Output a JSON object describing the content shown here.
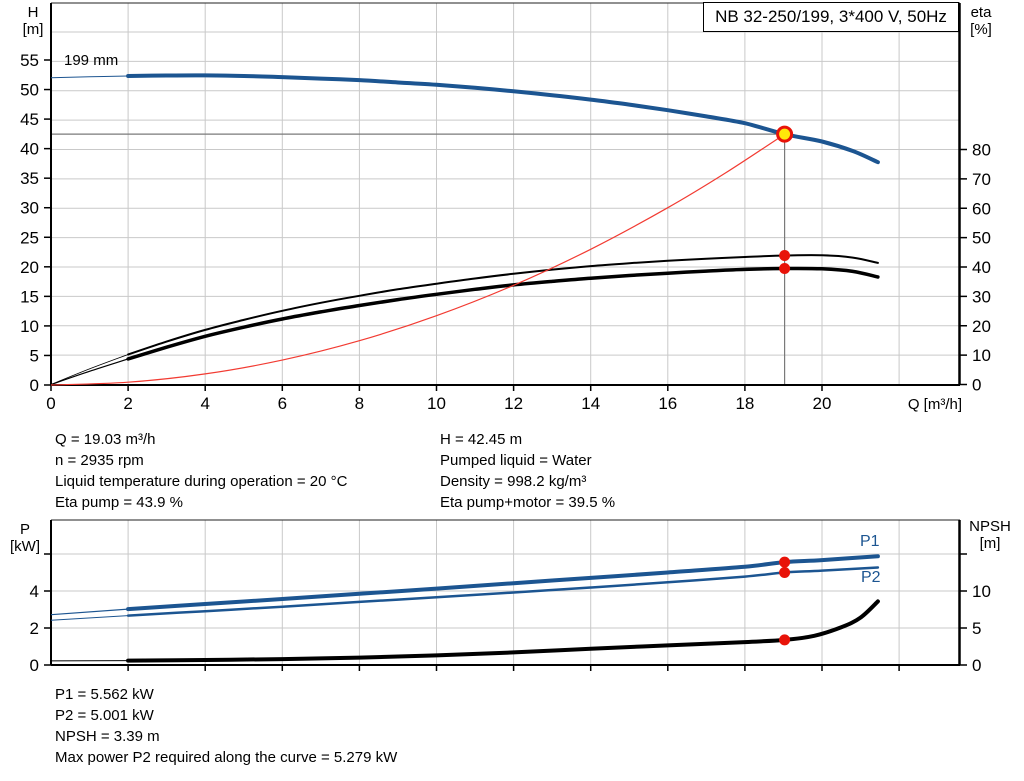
{
  "colors": {
    "blue": "#1c5591",
    "black": "#000000",
    "red_line": "#f23b32",
    "marker_red": "#e81309",
    "duty_fill": "#ffe90a",
    "duty_ring": "#e81309",
    "grid": "#c9c9c9",
    "guide": "#7a7a7a",
    "border": "#222222",
    "text": "#000000"
  },
  "chart_data": [
    {
      "id": "qh-eta-chart",
      "type": "line",
      "title": "NB 32-250/199, 3*400 V, 50Hz",
      "xlabel": "Q [m³/h]",
      "left_axis_symbol": "H",
      "left_axis_unit": "[m]",
      "right_axis_symbol": "eta",
      "right_axis_unit": "[%]",
      "impeller_label": "199 mm",
      "xlim": [
        0,
        23.6
      ],
      "ylim_left": [
        0,
        64.6
      ],
      "ylim_right": [
        0,
        129.9
      ],
      "x_ticks": [
        0,
        2,
        4,
        6,
        8,
        10,
        12,
        14,
        16,
        18,
        20
      ],
      "y_ticks_left": [
        0,
        5,
        10,
        15,
        20,
        25,
        30,
        35,
        40,
        45,
        50,
        55
      ],
      "y_ticks_right": [
        0,
        10,
        20,
        30,
        40,
        50,
        60,
        70,
        80
      ],
      "grid": true,
      "legend_position": "none",
      "duty_point": {
        "q": 19.03,
        "h": 42.45
      },
      "markers": [
        {
          "axis": "right",
          "q": 19.03,
          "value": 43.9,
          "label": "eta pump operating point"
        },
        {
          "axis": "right",
          "q": 19.03,
          "value": 39.5,
          "label": "eta pump+motor operating point"
        }
      ],
      "series": [
        {
          "id": "h",
          "label": "H (199 mm impeller)",
          "axis": "left",
          "color_key": "blue",
          "width": 4,
          "thin_width": 1,
          "thin_until": 2,
          "z": 4,
          "points": [
            [
              0,
              52.0
            ],
            [
              1,
              52.15
            ],
            [
              2,
              52.3
            ],
            [
              3,
              52.38
            ],
            [
              4,
              52.4
            ],
            [
              5,
              52.3
            ],
            [
              6,
              52.1
            ],
            [
              7,
              51.85
            ],
            [
              8,
              51.6
            ],
            [
              9,
              51.2
            ],
            [
              10,
              50.8
            ],
            [
              11,
              50.3
            ],
            [
              12,
              49.7
            ],
            [
              13,
              49.05
            ],
            [
              14,
              48.3
            ],
            [
              15,
              47.45
            ],
            [
              16,
              46.5
            ],
            [
              17,
              45.45
            ],
            [
              18,
              44.3
            ],
            [
              19.03,
              42.45
            ],
            [
              20,
              41.2
            ],
            [
              20.8,
              39.6
            ],
            [
              21.45,
              37.7
            ]
          ]
        },
        {
          "id": "eta-pump",
          "label": "Eta pump",
          "axis": "right",
          "color_key": "black",
          "width": 2,
          "thin_width": 0.8,
          "thin_until": 2,
          "z": 2,
          "points": [
            [
              0,
              0
            ],
            [
              1,
              5.3
            ],
            [
              2,
              10.2
            ],
            [
              3,
              14.6
            ],
            [
              4,
              18.6
            ],
            [
              5,
              22.0
            ],
            [
              6,
              25.1
            ],
            [
              7,
              27.8
            ],
            [
              8,
              30.2
            ],
            [
              9,
              32.4
            ],
            [
              10,
              34.3
            ],
            [
              11,
              36.1
            ],
            [
              12,
              37.7
            ],
            [
              13,
              39.1
            ],
            [
              14,
              40.3
            ],
            [
              15,
              41.3
            ],
            [
              16,
              42.1
            ],
            [
              17,
              42.8
            ],
            [
              18,
              43.4
            ],
            [
              19.03,
              43.9
            ],
            [
              20,
              44.0
            ],
            [
              20.8,
              43.2
            ],
            [
              21.45,
              41.4
            ]
          ]
        },
        {
          "id": "eta-pump-motor",
          "label": "Eta pump+motor",
          "axis": "right",
          "color_key": "black",
          "width": 3.5,
          "thin_width": 1.2,
          "thin_until": 2,
          "z": 1,
          "points": [
            [
              0,
              0
            ],
            [
              1,
              4.5
            ],
            [
              2,
              8.7
            ],
            [
              3,
              12.7
            ],
            [
              4,
              16.4
            ],
            [
              5,
              19.5
            ],
            [
              6,
              22.3
            ],
            [
              7,
              24.7
            ],
            [
              8,
              26.9
            ],
            [
              9,
              28.9
            ],
            [
              10,
              30.7
            ],
            [
              11,
              32.4
            ],
            [
              12,
              33.9
            ],
            [
              13,
              35.1
            ],
            [
              14,
              36.2
            ],
            [
              15,
              37.1
            ],
            [
              16,
              37.9
            ],
            [
              17,
              38.6
            ],
            [
              18,
              39.2
            ],
            [
              19.03,
              39.5
            ],
            [
              20,
              39.4
            ],
            [
              20.8,
              38.5
            ],
            [
              21.45,
              36.6
            ]
          ]
        },
        {
          "id": "system",
          "label": "System curve",
          "axis": "left",
          "color_key": "red_line",
          "width": 1.2,
          "z": 3,
          "points": [
            [
              0,
              0
            ],
            [
              2,
              0.47
            ],
            [
              4,
              1.87
            ],
            [
              6,
              4.22
            ],
            [
              8,
              7.5
            ],
            [
              10,
              11.72
            ],
            [
              12,
              16.87
            ],
            [
              14,
              22.97
            ],
            [
              16,
              30.0
            ],
            [
              17.5,
              35.9
            ],
            [
              19.03,
              42.45
            ]
          ]
        }
      ]
    },
    {
      "id": "power-npsh-chart",
      "type": "line",
      "title": "",
      "xlabel": "",
      "left_axis_symbol": "P",
      "left_axis_unit": "[kW]",
      "right_axis_symbol": "NPSH",
      "right_axis_unit": "[m]",
      "xlim": [
        0,
        23.6
      ],
      "ylim_left": [
        0,
        7.84
      ],
      "ylim_right": [
        0,
        19.6
      ],
      "x_ticks": [
        2,
        4,
        6,
        8,
        10,
        12,
        14,
        16,
        18,
        20,
        22
      ],
      "y_ticks_left": [
        0,
        2,
        4
      ],
      "y_ticks_left_minor": [
        6
      ],
      "y_ticks_right": [
        0,
        5,
        10
      ],
      "y_ticks_right_minor": [
        15
      ],
      "grid": true,
      "legend_position": "inline-right",
      "markers": [
        {
          "axis": "left",
          "q": 19.03,
          "value": 5.562,
          "label": "P1 operating point"
        },
        {
          "axis": "left",
          "q": 19.03,
          "value": 5.001,
          "label": "P2 operating point"
        },
        {
          "axis": "right",
          "q": 19.03,
          "value": 3.39,
          "label": "NPSH operating point"
        }
      ],
      "series": [
        {
          "id": "p1",
          "label": "P1",
          "axis": "left",
          "color_key": "blue",
          "width": 4,
          "thin_width": 1.2,
          "thin_until": 2,
          "z": 3,
          "points": [
            [
              0,
              2.72
            ],
            [
              2,
              3.02
            ],
            [
              4,
              3.3
            ],
            [
              6,
              3.57
            ],
            [
              8,
              3.85
            ],
            [
              10,
              4.13
            ],
            [
              12,
              4.42
            ],
            [
              14,
              4.71
            ],
            [
              16,
              5.0
            ],
            [
              18,
              5.31
            ],
            [
              19.03,
              5.562
            ],
            [
              20,
              5.67
            ],
            [
              21.45,
              5.88
            ]
          ]
        },
        {
          "id": "p2",
          "label": "P2",
          "axis": "left",
          "color_key": "blue",
          "width": 2.5,
          "thin_width": 1,
          "thin_until": 2,
          "z": 2,
          "points": [
            [
              0,
              2.42
            ],
            [
              2,
              2.67
            ],
            [
              4,
              2.91
            ],
            [
              6,
              3.15
            ],
            [
              8,
              3.41
            ],
            [
              10,
              3.66
            ],
            [
              12,
              3.92
            ],
            [
              14,
              4.19
            ],
            [
              16,
              4.47
            ],
            [
              18,
              4.78
            ],
            [
              19.03,
              5.001
            ],
            [
              20,
              5.1
            ],
            [
              21.45,
              5.27
            ]
          ]
        },
        {
          "id": "npsh",
          "label": "NPSH",
          "axis": "right",
          "color_key": "black",
          "width": 4,
          "thin_width": 1,
          "thin_until": 2,
          "z": 1,
          "points": [
            [
              0,
              0.55
            ],
            [
              2,
              0.6
            ],
            [
              4,
              0.68
            ],
            [
              6,
              0.8
            ],
            [
              8,
              1.0
            ],
            [
              10,
              1.3
            ],
            [
              12,
              1.7
            ],
            [
              14,
              2.2
            ],
            [
              16,
              2.65
            ],
            [
              18,
              3.1
            ],
            [
              19.03,
              3.39
            ],
            [
              19.8,
              3.95
            ],
            [
              20.5,
              5.1
            ],
            [
              21,
              6.4
            ],
            [
              21.45,
              8.6
            ]
          ]
        }
      ]
    }
  ],
  "info_top": {
    "left": [
      "Q = 19.03 m³/h",
      "n = 2935 rpm",
      "Liquid temperature during operation = 20 °C",
      "Eta pump = 43.9 %"
    ],
    "right": [
      "H = 42.45 m",
      "Pumped liquid = Water",
      "Density = 998.2 kg/m³",
      "Eta pump+motor = 39.5 %"
    ]
  },
  "info_bottom": [
    "P1 = 5.562 kW",
    "P2 = 5.001 kW",
    "NPSH = 3.39 m",
    "Max power P2 required along the curve = 5.279 kW"
  ]
}
